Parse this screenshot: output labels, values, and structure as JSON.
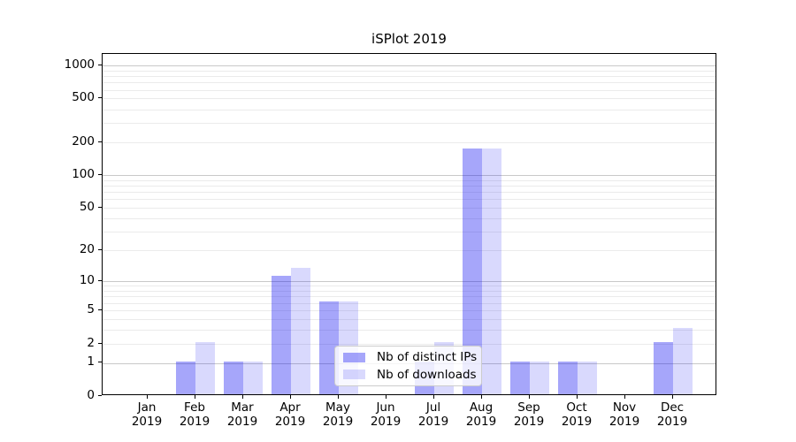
{
  "chart_data": {
    "type": "bar",
    "title": "iSPlot 2019",
    "xlabel": "",
    "ylabel": "",
    "year_label": "2019",
    "categories": [
      "Jan",
      "Feb",
      "Mar",
      "Apr",
      "May",
      "Jun",
      "Jul",
      "Aug",
      "Sep",
      "Oct",
      "Nov",
      "Dec"
    ],
    "series": [
      {
        "name": "Nb of distinct IPs",
        "color": "rgba(0,0,240,0.35)",
        "values": [
          0,
          1,
          1,
          11,
          6,
          0,
          1,
          170,
          1,
          1,
          0,
          2
        ]
      },
      {
        "name": "Nb of downloads",
        "color": "rgba(0,0,240,0.15)",
        "values": [
          0,
          2,
          1,
          13,
          6,
          0,
          2,
          170,
          1,
          1,
          0,
          3
        ]
      }
    ],
    "yscale": "log1p",
    "yticks": [
      0,
      1,
      2,
      5,
      10,
      20,
      50,
      100,
      200,
      500,
      1000
    ],
    "ylim": [
      0,
      1270
    ],
    "grid": {
      "major_values": [
        1,
        10,
        100,
        1000
      ],
      "major_color": "#c9c9c9",
      "minor_color": "#ebebeb"
    },
    "legend": {
      "position": "lower center",
      "labels": [
        "Nb of distinct IPs",
        "Nb of downloads"
      ]
    },
    "axis_color": "#000000",
    "background_color": "#ffffff"
  }
}
